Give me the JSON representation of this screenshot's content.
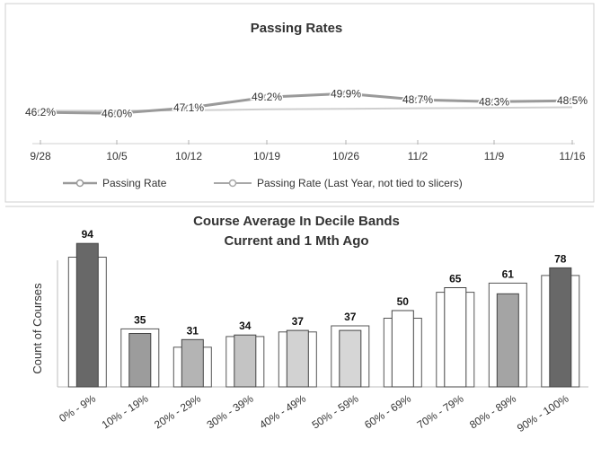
{
  "chart_data": [
    {
      "type": "line",
      "title": "Passing Rates",
      "categories": [
        "9/28",
        "10/5",
        "10/12",
        "10/19",
        "10/26",
        "11/2",
        "11/9",
        "11/16"
      ],
      "series": [
        {
          "name": "Passing Rate",
          "values": [
            46.2,
            46.0,
            47.1,
            49.2,
            49.9,
            48.7,
            48.3,
            48.5
          ],
          "labels": [
            "46.2%",
            "46.0%",
            "47.1%",
            "49.2%",
            "49.9%",
            "48.7%",
            "48.3%",
            "48.5%"
          ]
        },
        {
          "name": "Passing Rate (Last Year, not tied to slicers)",
          "values": [
            46.5,
            46.5,
            46.6,
            46.8,
            46.9,
            47.0,
            47.1,
            47.2
          ]
        }
      ],
      "legend": "bottom",
      "colors": {
        "current": "#9a9a9a",
        "last_year": "#cfcfcf"
      }
    },
    {
      "type": "bar",
      "title": "Course Average In Decile Bands",
      "subtitle": "Current and 1 Mth Ago",
      "ylabel": "Count of Courses",
      "ylim": [
        0,
        100
      ],
      "categories": [
        "0% - 9%",
        "10% - 19%",
        "20% - 29%",
        "30% - 39%",
        "40% - 49%",
        "50% - 59%",
        "60% - 69%",
        "70% - 79%",
        "80% - 89%",
        "90% - 100%"
      ],
      "series": [
        {
          "values": [
            94,
            35,
            31,
            34,
            37,
            37,
            50,
            65,
            61,
            78
          ]
        },
        {
          "values": [
            85,
            38,
            26,
            33,
            36,
            40,
            45,
            62,
            68,
            73
          ]
        }
      ],
      "colors": [
        "#686868",
        "#9c9c9c",
        "#b4b4b4",
        "#c4c4c4",
        "#d2d2d2",
        "#d6d6d6",
        "#ffffff",
        "#ffffff",
        "#a4a4a4",
        "#686868"
      ]
    }
  ]
}
